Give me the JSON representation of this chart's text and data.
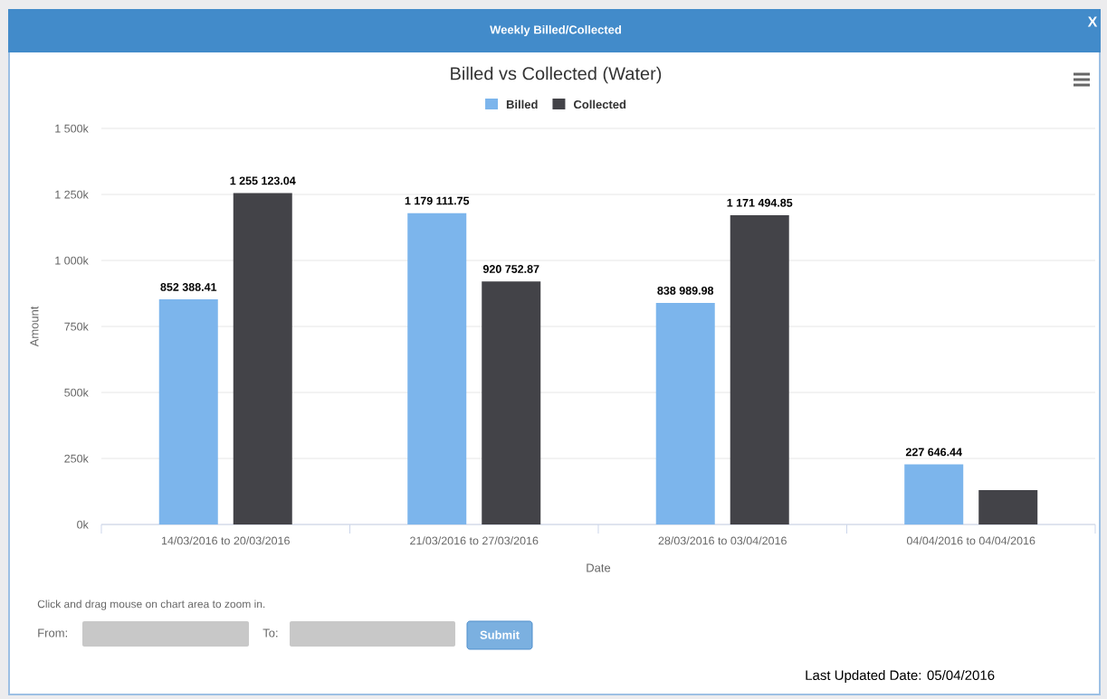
{
  "chart_data": {
    "type": "bar",
    "title": "Billed vs Collected (Water)",
    "xlabel": "Date",
    "ylabel": "Amount",
    "categories": [
      "14/03/2016 to 20/03/2016",
      "21/03/2016 to 27/03/2016",
      "28/03/2016 to 03/04/2016",
      "04/04/2016 to 04/04/2016"
    ],
    "series": [
      {
        "name": "Billed",
        "color": "#7cb5ec",
        "values": [
          852388.41,
          1179111.75,
          838989.98,
          227646.44
        ],
        "value_labels": [
          "852 388.41",
          "1 179 111.75",
          "838 989.98",
          "227 646.44"
        ]
      },
      {
        "name": "Collected",
        "color": "#434348",
        "values": [
          1255123.04,
          920752.87,
          1171494.85,
          130000
        ],
        "value_labels": [
          "1 255 123.04",
          "920 752.87",
          "1 171 494.85",
          null
        ]
      }
    ],
    "ylim": [
      0,
      1500000
    ],
    "yticks": [
      {
        "value": 0,
        "label": "0k"
      },
      {
        "value": 250000,
        "label": "250k"
      },
      {
        "value": 500000,
        "label": "500k"
      },
      {
        "value": 750000,
        "label": "750k"
      },
      {
        "value": 1000000,
        "label": "1 000k"
      },
      {
        "value": 1250000,
        "label": "1 250k"
      },
      {
        "value": 1500000,
        "label": "1 500k"
      }
    ],
    "grid": "y",
    "legend": "top",
    "annotations": [
      "Weekly Billed/Collected",
      "X",
      "Click and drag mouse on chart area to zoom in.",
      "From:",
      "To:",
      "Submit",
      "Last Updated Date: 05/04/2016"
    ]
  }
}
